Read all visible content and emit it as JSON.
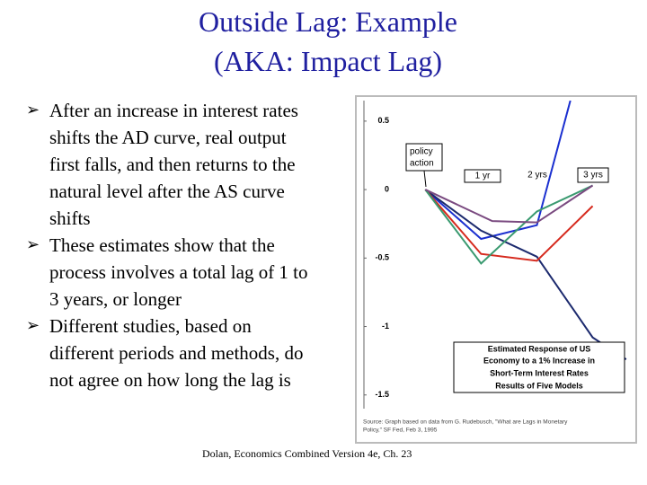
{
  "slide": {
    "title": [
      "Outside Lag: Example",
      "(AKA: Impact Lag)"
    ],
    "bullets": [
      "After an increase in interest rates shifts the AD curve, real output first falls, and then returns to the natural level after the AS curve shifts",
      "These estimates show that the process involves a total lag of 1 to 3 years, or longer",
      "Different studies, based on different periods and methods, do not agree on how long the lag is"
    ],
    "footer": "Dolan, Economics Combined Version 4e, Ch. 23"
  },
  "chart_data": {
    "type": "line",
    "ylim": [
      -1.6,
      0.65
    ],
    "yticks": [
      0.5,
      0,
      -0.5,
      -1,
      -1.5
    ],
    "xlim": [
      -1.1,
      3.7
    ],
    "grid": false,
    "series": [
      {
        "color": "#1a2fd0",
        "x": [
          0,
          1,
          2,
          2.6
        ],
        "values": [
          0,
          -0.36,
          -0.26,
          0.65
        ]
      },
      {
        "color": "#1c2a6e",
        "x": [
          0,
          1,
          2,
          3,
          3.6
        ],
        "values": [
          0,
          -0.3,
          -0.49,
          -1.08,
          -1.24
        ]
      },
      {
        "color": "#d62a1e",
        "x": [
          0,
          1,
          2,
          3
        ],
        "values": [
          0,
          -0.47,
          -0.52,
          -0.12
        ]
      },
      {
        "color": "#3a9a70",
        "x": [
          0,
          1,
          2,
          3
        ],
        "values": [
          0,
          -0.54,
          -0.16,
          0.03
        ]
      },
      {
        "color": "#7a4a80",
        "x": [
          0,
          1.2,
          2,
          3
        ],
        "values": [
          0,
          -0.23,
          -0.24,
          0.03
        ]
      }
    ],
    "annotations": [
      "policy",
      "action",
      "1 yr",
      "2 yrs",
      "3 yrs"
    ],
    "note": [
      "Estimated Response of US",
      "Economy to a 1% Increase in",
      "Short-Term Interest Rates",
      "Results of Five Models"
    ],
    "source": [
      "Source: Graph based on data from G. Rudebusch, \"What are Lags in Monetary",
      "Policy,\" SF Fed, Feb 3, 1995"
    ]
  }
}
